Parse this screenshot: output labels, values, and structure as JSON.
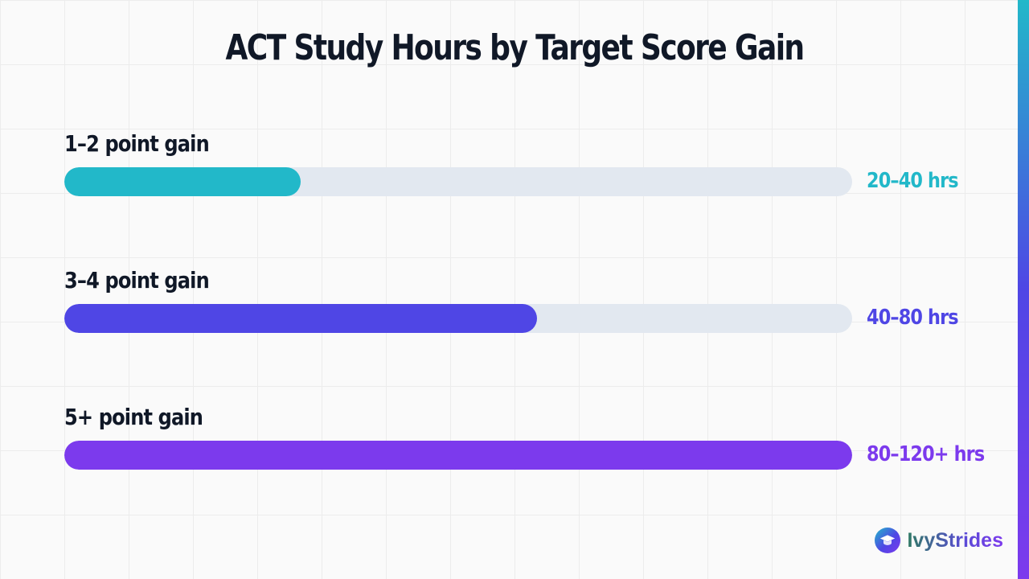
{
  "chart_data": {
    "type": "bar",
    "orientation": "horizontal",
    "title": "ACT Study Hours by Target Score Gain",
    "categories": [
      "1–2 point gain",
      "3–4 point gain",
      "5+ point gain"
    ],
    "values": [
      30,
      60,
      100
    ],
    "value_labels": [
      "20–40 hrs",
      "40–80 hrs",
      "80–120+ hrs"
    ],
    "colors": [
      "#22b8c9",
      "#4f46e5",
      "#7c3aed"
    ],
    "track_color": "#e2e8f0",
    "xlim": [
      0,
      100
    ],
    "grid": true,
    "legend": "none"
  },
  "brand": {
    "name": "IvyStrides",
    "icon": "graduation-cap-icon"
  }
}
